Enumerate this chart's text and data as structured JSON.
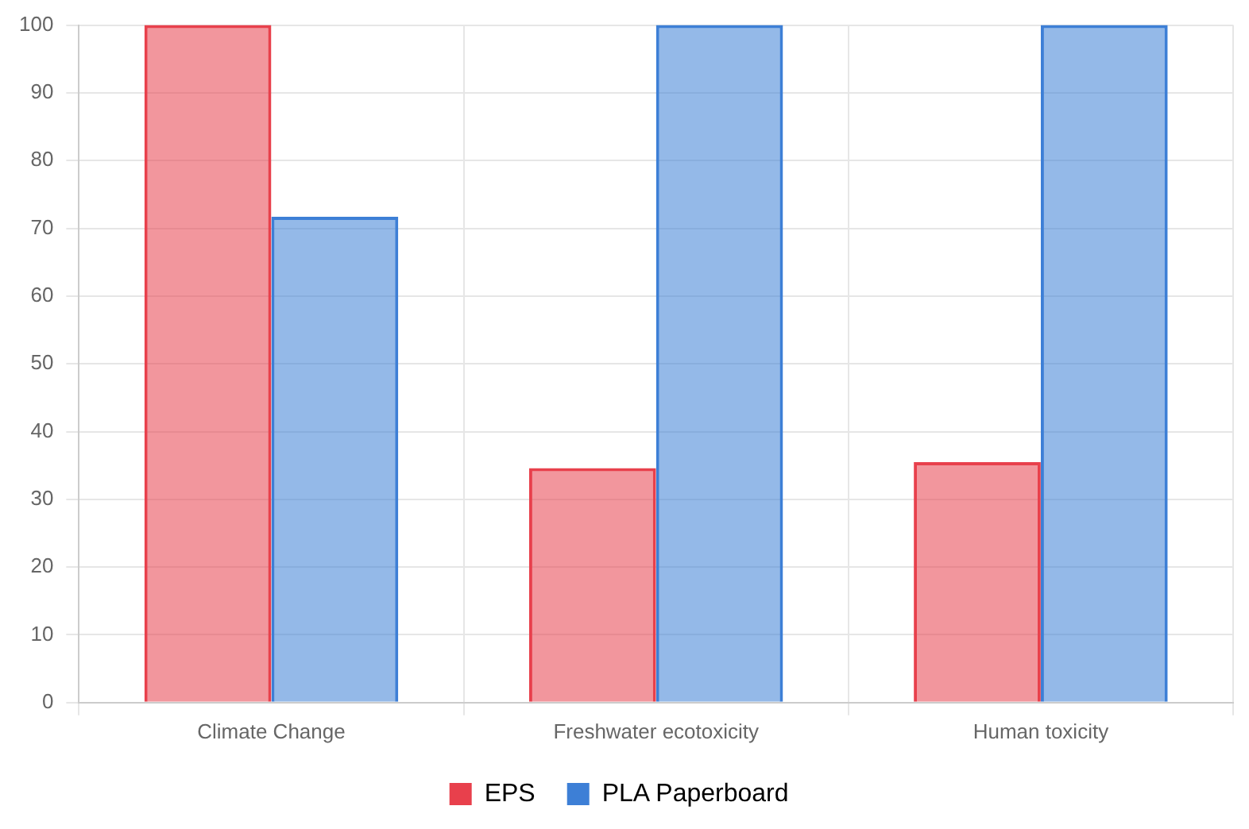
{
  "chart_data": {
    "type": "bar",
    "categories": [
      "Climate Change",
      "Freshwater ecotoxicity",
      "Human toxicity"
    ],
    "series": [
      {
        "name": "EPS",
        "color": "#e8404c",
        "values": [
          100,
          34.6,
          35.5
        ]
      },
      {
        "name": "PLA Paperboard",
        "color": "#3d7fd6",
        "values": [
          71.7,
          100,
          100
        ]
      }
    ],
    "ylim": [
      0,
      100
    ],
    "yticks": [
      0,
      10,
      20,
      30,
      40,
      50,
      60,
      70,
      80,
      90,
      100
    ],
    "grid": true,
    "legend": "bottom"
  }
}
